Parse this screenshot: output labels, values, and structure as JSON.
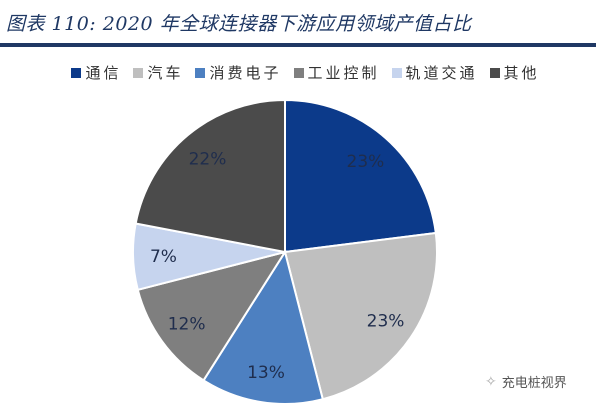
{
  "title": "图表 110:  2020 年全球连接器下游应用领域产值占比",
  "watermark": "充电桩视界",
  "chart_data": {
    "type": "pie",
    "title": "图表 110:  2020 年全球连接器下游应用领域产值占比",
    "legend_position": "top",
    "categories": [
      "通信",
      "汽车",
      "消费电子",
      "工业控制",
      "轨道交通",
      "其他"
    ],
    "values": [
      23,
      23,
      13,
      12,
      7,
      22
    ],
    "labels": [
      "23%",
      "23%",
      "13%",
      "12%",
      "7%",
      "22%"
    ],
    "colors": [
      "#0c3a8a",
      "#bfbfbf",
      "#4d80c1",
      "#7f7f7f",
      "#c6d4ee",
      "#4b4b4b"
    ]
  }
}
